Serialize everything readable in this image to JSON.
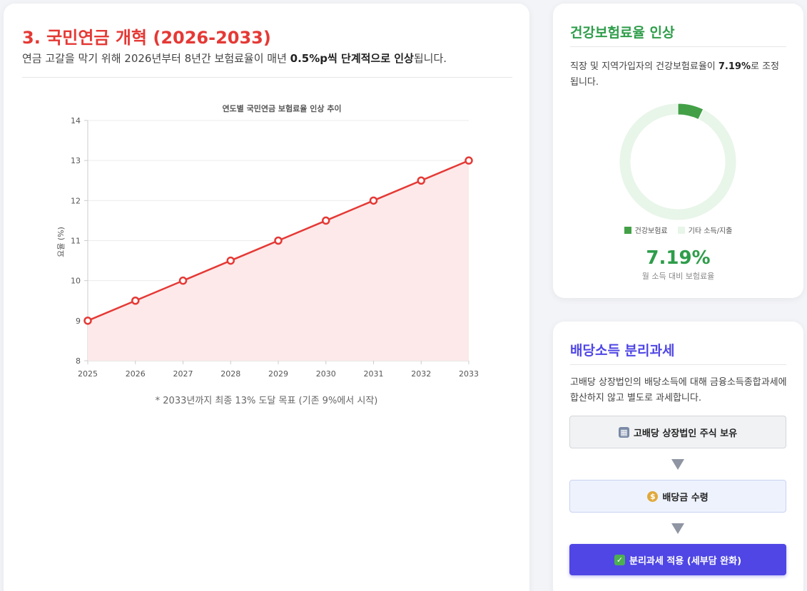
{
  "pension": {
    "title": "3. 국민연금 개혁 (2026-2033)",
    "desc_prefix": "연금 고갈을 막기 위해 2026년부터 8년간 보험료율이 매년 ",
    "desc_bold": "0.5%p씩 단계적으로 인상",
    "desc_suffix": "됩니다.",
    "note": "* 2033년까지 최종 13% 도달 목표 (기존 9%에서 시작)"
  },
  "chart_data": [
    {
      "type": "area",
      "title": "연도별 국민연금 보험료율 인상 추이",
      "xlabel": "",
      "ylabel": "요율 (%)",
      "categories": [
        "2025",
        "2026",
        "2027",
        "2028",
        "2029",
        "2030",
        "2031",
        "2032",
        "2033"
      ],
      "series": [
        {
          "values": [
            9,
            9.5,
            10,
            10.5,
            11,
            11.5,
            12,
            12.5,
            13
          ],
          "color": "#e53935"
        }
      ],
      "ylim": [
        8,
        14
      ],
      "yticks": [
        8,
        9,
        10,
        11,
        12,
        13,
        14
      ],
      "grid": true,
      "fill_color": "#fde9ea"
    },
    {
      "type": "pie",
      "labels": [
        "건강보험료",
        "기타 소득/지출"
      ],
      "values": [
        7.19,
        92.81
      ],
      "colors": [
        "#43a047",
        "#e8f5e9"
      ],
      "legend": "bottom"
    }
  ],
  "health": {
    "title": "건강보험료율 인상",
    "desc_prefix": "직장 및 지역가입자의 건강보험료율이 ",
    "desc_bold": "7.19%",
    "desc_suffix": "로 조정됩니다.",
    "legend": [
      "건강보험료",
      "기타 소득/지출"
    ],
    "big_value": "7.19%",
    "sub_label": "월 소득 대비 보험료율"
  },
  "dividend": {
    "title": "배당소득 분리과세",
    "desc": "고배당 상장법인의 배당소득에 대해 금융소득종합과세에 합산하지 않고 별도로 과세합니다.",
    "flow": [
      {
        "icon": "building-icon",
        "label": "고배당 상장법인 주식 보유"
      },
      {
        "icon": "money-bag-icon",
        "label": "배당금 수령"
      },
      {
        "icon": "check-icon",
        "label": "분리과세 적용 (세부담 완화)"
      }
    ]
  },
  "colors": {
    "pension_accent": "#e53935",
    "health_accent": "#2e9d4a",
    "dividend_accent": "#4f46e5"
  }
}
